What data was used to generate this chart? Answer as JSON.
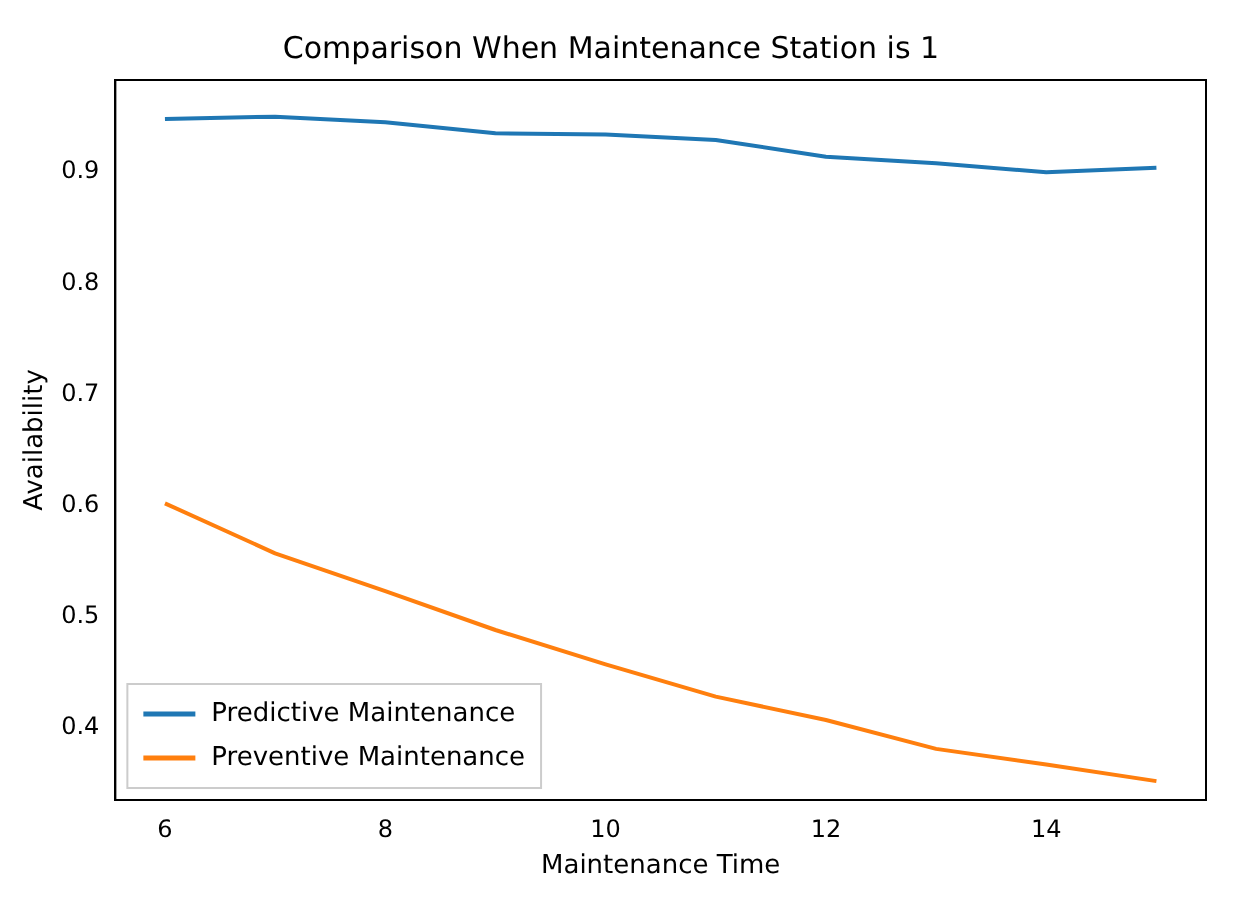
{
  "chart_data": {
    "type": "line",
    "title": "Comparison When Maintenance Station is 1",
    "xlabel": "Maintenance Time",
    "ylabel": "Availability",
    "x": [
      6,
      7,
      8,
      9,
      10,
      11,
      12,
      13,
      14,
      15
    ],
    "series": [
      {
        "name": "Predictive Maintenance",
        "color": "#1f77b4",
        "values": [
          0.948,
          0.95,
          0.945,
          0.935,
          0.934,
          0.929,
          0.914,
          0.908,
          0.9,
          0.904
        ]
      },
      {
        "name": "Preventive Maintenance",
        "color": "#ff7f0e",
        "values": [
          0.602,
          0.557,
          0.523,
          0.488,
          0.457,
          0.428,
          0.407,
          0.381,
          0.367,
          0.352
        ]
      }
    ],
    "xlim": [
      5.55,
      15.45
    ],
    "ylim": [
      0.335,
      0.983
    ],
    "xticks": [
      6,
      8,
      10,
      12,
      14
    ],
    "yticks": [
      0.4,
      0.5,
      0.6,
      0.7,
      0.8,
      0.9
    ],
    "grid": false,
    "legend": "bottom left",
    "marker": "none",
    "line_style": "solid"
  }
}
